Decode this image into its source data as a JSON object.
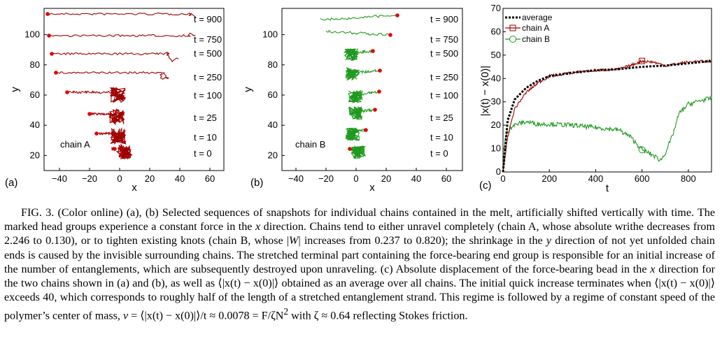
{
  "figure": {
    "panel_a": {
      "label": "(a)",
      "chain_label": "chain A",
      "xlabel": "x",
      "ylabel": "y",
      "xticks": [
        "−40",
        "−20",
        "0",
        "20",
        "40",
        "60"
      ],
      "yticks": [
        "20",
        "40",
        "60",
        "80",
        "100"
      ],
      "time_labels": [
        "t = 900",
        "t = 750",
        "t = 500",
        "t = 250",
        "t = 100",
        "t = 25",
        "t = 10",
        "t = 0"
      ],
      "line_color": "#a00000",
      "head_color": "#e00000"
    },
    "panel_b": {
      "label": "(b)",
      "chain_label": "chain B",
      "xlabel": "x",
      "ylabel": "y",
      "xticks": [
        "−40",
        "−20",
        "0",
        "20",
        "40",
        "60"
      ],
      "yticks": [
        "20",
        "40",
        "60",
        "80",
        "100"
      ],
      "time_labels": [
        "t = 900",
        "t = 750",
        "t = 500",
        "t = 250",
        "t = 100",
        "t = 25",
        "t = 10",
        "t = 0"
      ],
      "line_color": "#1f9a1f",
      "head_color": "#e00000"
    },
    "panel_c": {
      "label": "(c)",
      "xlabel": "t",
      "ylabel": "|x(t) − x(0)|",
      "xticks": [
        "0",
        "200",
        "400",
        "600",
        "800"
      ],
      "yticks": [
        "0",
        "10",
        "20",
        "30",
        "40",
        "50",
        "60",
        "70"
      ],
      "legend": [
        "average",
        "chain A",
        "chain B"
      ],
      "colors": {
        "average": "#000000",
        "chain_a": "#a00000",
        "chain_b": "#1f9a1f"
      }
    }
  },
  "chart_data": [
    {
      "type": "line",
      "title": "",
      "xlabel": "t",
      "ylabel": "|x(t) − x(0)|",
      "xlim": [
        0,
        900
      ],
      "ylim": [
        0,
        70
      ],
      "series": [
        {
          "name": "average",
          "x": [
            0,
            20,
            50,
            100,
            150,
            200,
            300,
            400,
            500,
            600,
            700,
            800,
            900
          ],
          "y": [
            0,
            22,
            31,
            36,
            39,
            41,
            42.5,
            43.5,
            44,
            45,
            45.5,
            46.5,
            47.5
          ]
        },
        {
          "name": "chain A",
          "x": [
            0,
            20,
            50,
            100,
            150,
            200,
            300,
            400,
            500,
            550,
            600,
            650,
            700,
            800,
            900
          ],
          "y": [
            0,
            15,
            27,
            34,
            38,
            41,
            42.5,
            43.5,
            44,
            45.5,
            47.5,
            47,
            45.5,
            47,
            47.5
          ]
        },
        {
          "name": "chain B",
          "x": [
            0,
            10,
            30,
            60,
            100,
            150,
            200,
            300,
            400,
            500,
            550,
            600,
            650,
            680,
            700,
            730,
            760,
            800,
            850,
            900
          ],
          "y": [
            0,
            15,
            19,
            20.5,
            21.5,
            20.5,
            20.5,
            20,
            19,
            18,
            15,
            9.5,
            7,
            5,
            8,
            15,
            25,
            29,
            30.5,
            31.5
          ]
        }
      ]
    }
  ],
  "caption": {
    "l1": "FIG. 3. (Color online) (a), (b) Selected sequences of snapshots for individual chains contained in the melt, artificially shifted vertically",
    "l2a": "with time. The marked head groups experience a constant force in the ",
    "l2x": "x",
    "l2b": " direction. Chains tend to either unravel completely (chain A, whose",
    "l3a": "absolute writhe decreases from 2.246 to 0.130), or to tighten existing knots (chain B, whose |",
    "l3w": "W",
    "l3b": "| increases from 0.237 to 0.820); the shrinkage",
    "l4a": "in the ",
    "l4y": "y",
    "l4b": " direction of not yet unfolded chain ends is caused by the invisible surrounding chains. The stretched terminal part containing the",
    "l5": "force-bearing end group is responsible for an initial increase of the number of entanglements, which are subsequently destroyed upon unraveling.",
    "l6a": "(c) Absolute displacement of the force-bearing bead in the ",
    "l6x": "x",
    "l6b": " direction for the two chains shown in (a) and (b), as well as ⟨|x(t) − x(0)|⟩ obtained",
    "l7": "as an average over all chains. The initial quick increase terminates when ⟨|x(t) − x(0)|⟩ exceeds 40, which corresponds to roughly half of",
    "l8": "the length of a stretched entanglement strand. This regime is followed by a regime of constant speed of the polymer’s center of mass,",
    "l9a": "v",
    "l9b": " = ⟨|x(t) − x(0)|⟩/t ≈ 0.0078 = F/ζN",
    "l9sup": "2",
    "l9c": " with ζ ≈ 0.64 reflecting Stokes friction."
  }
}
